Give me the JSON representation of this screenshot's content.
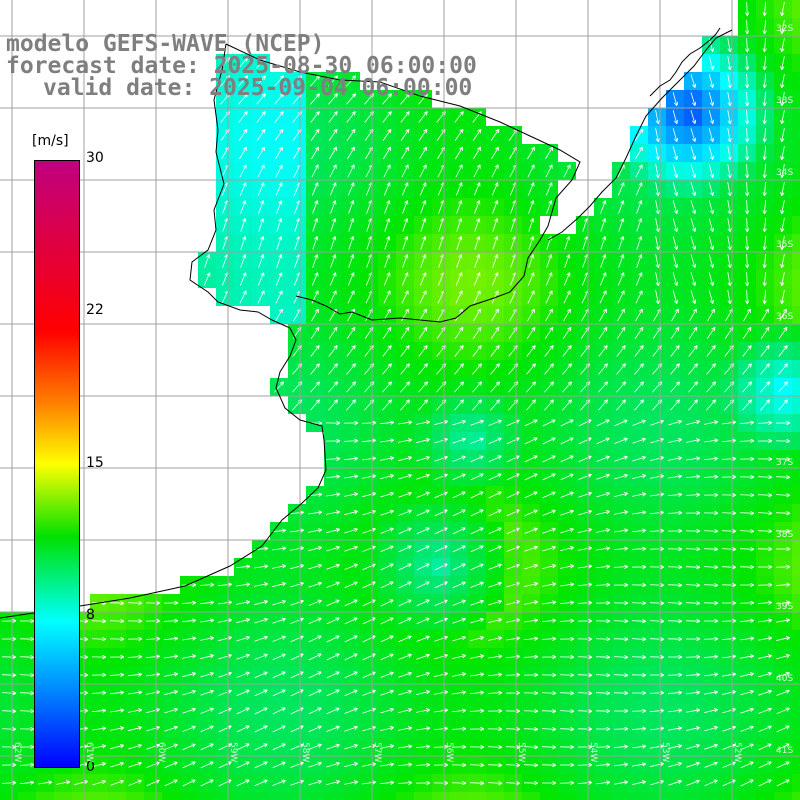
{
  "title": {
    "model": "modelo GEFS-WAVE (NCEP)",
    "forecast": "forecast date: 2025-08-30 06:00:00",
    "valid": "valid date: 2025-09-04 06:00:00"
  },
  "colorbar": {
    "unit": "[m/s]",
    "ticks": [
      "30",
      "22",
      "15",
      "8",
      "0"
    ],
    "colors": [
      "#c0007f",
      "#ff0000",
      "#ff8000",
      "#ffff00",
      "#00e000",
      "#00ffff",
      "#0080ff",
      "#0000ff"
    ]
  },
  "lat_labels": [
    "32S",
    "33S",
    "34S",
    "35S",
    "36S",
    "37S",
    "38S",
    "39S",
    "40S",
    "41S"
  ],
  "lon_labels": [
    "62W",
    "61W",
    "60W",
    "59W",
    "58W",
    "57W",
    "56W",
    "55W",
    "54W",
    "53W",
    "52W"
  ],
  "colors": {
    "land": "#ffffff",
    "coast": "#000000",
    "grid": "#a0a0a0",
    "arrows": "#ffffff",
    "title": "#7f7f7f"
  }
}
